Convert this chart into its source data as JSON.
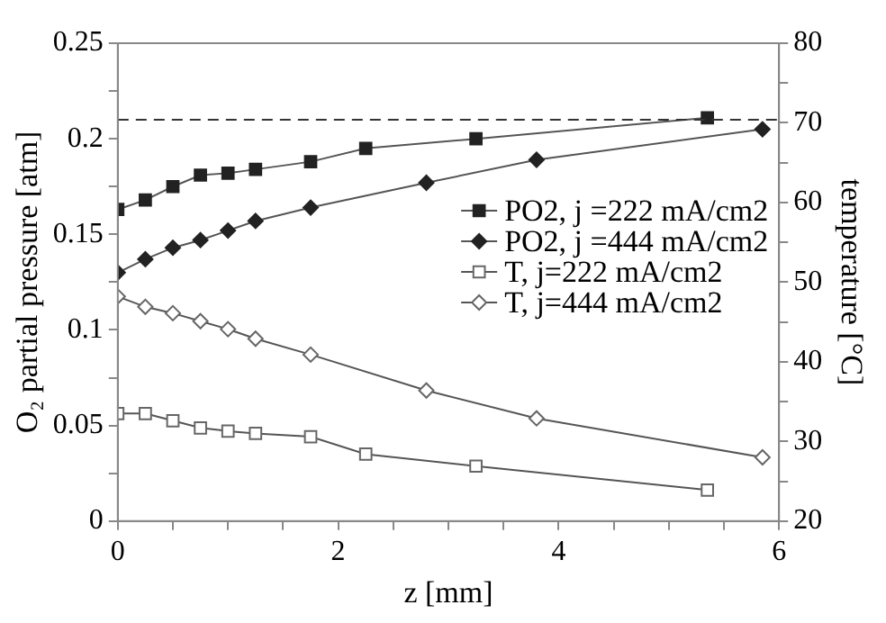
{
  "chart_data": {
    "type": "line",
    "xlabel": "z [mm]",
    "ylabel": "O₂ partial pressure [atm]",
    "y2label": "temperature [°C]",
    "xlim": [
      0,
      6
    ],
    "xticks": [
      0,
      {
        "value": 0.5,
        "label": null
      },
      {
        "value": 1,
        "label": null
      },
      {
        "value": 1.5,
        "label": null
      },
      2,
      {
        "value": 2.5,
        "label": null
      },
      {
        "value": 3,
        "label": null
      },
      {
        "value": 3.5,
        "label": null
      },
      4,
      {
        "value": 4.5,
        "label": null
      },
      {
        "value": 5,
        "label": null
      },
      {
        "value": 5.5,
        "label": null
      },
      6
    ],
    "ylim": [
      0,
      0.25
    ],
    "yticks": [
      0,
      {
        "value": 0.025,
        "label": null
      },
      0.05,
      {
        "value": 0.075,
        "label": null
      },
      0.1,
      {
        "value": 0.125,
        "label": null
      },
      0.15,
      {
        "value": 0.175,
        "label": null
      },
      0.2,
      {
        "value": 0.225,
        "label": null
      },
      0.25
    ],
    "y2lim": [
      20,
      80
    ],
    "y2ticks": [
      20,
      {
        "value": 25,
        "label": null
      },
      30,
      {
        "value": 35,
        "label": null
      },
      40,
      {
        "value": 45,
        "label": null
      },
      50,
      {
        "value": 55,
        "label": null
      },
      60,
      {
        "value": 65,
        "label": null
      },
      70,
      {
        "value": 75,
        "label": null
      },
      80
    ],
    "grid": false,
    "legend": "right",
    "line_style": "solid",
    "ref_lines": [
      {
        "axis": "y",
        "value": 0.21,
        "line_style": "dashed",
        "color": "#333333"
      }
    ],
    "series": [
      {
        "name": "PO2, j =222 mA/cm2",
        "color": "#222222",
        "marker": "square",
        "x": [
          0,
          0.25,
          0.5,
          0.75,
          1,
          1.25,
          1.75,
          2.25,
          3.25,
          5.35
        ],
        "values": [
          0.163,
          0.168,
          0.175,
          0.181,
          0.182,
          0.184,
          0.188,
          0.195,
          0.2,
          0.211
        ]
      },
      {
        "name": "PO2, j =444 mA/cm2",
        "color": "#222222",
        "marker": "diamond",
        "x": [
          0,
          0.25,
          0.5,
          0.75,
          1,
          1.25,
          1.75,
          2.8,
          3.8,
          5.85
        ],
        "values": [
          0.13,
          0.137,
          0.143,
          0.147,
          0.152,
          0.157,
          0.164,
          0.177,
          0.189,
          0.205
        ]
      },
      {
        "name": "T, j=222 mA/cm2",
        "color": "#666666",
        "marker": "square",
        "axis": "y2",
        "x": [
          0,
          0.25,
          0.5,
          0.75,
          1,
          1.25,
          1.75,
          2.25,
          3.25,
          5.35
        ],
        "values": [
          33.5,
          33.5,
          32.6,
          31.7,
          31.3,
          31.0,
          30.6,
          28.4,
          26.9,
          23.9
        ]
      },
      {
        "name": "T, j=444 mA/cm2",
        "color": "#666666",
        "marker": "diamond",
        "axis": "y2",
        "x": [
          0,
          0.25,
          0.5,
          0.75,
          1,
          1.25,
          1.75,
          2.8,
          3.8,
          5.85
        ],
        "values": [
          48.2,
          46.9,
          46.1,
          45.1,
          44.1,
          42.9,
          40.9,
          36.4,
          32.9,
          28.0
        ]
      }
    ]
  }
}
